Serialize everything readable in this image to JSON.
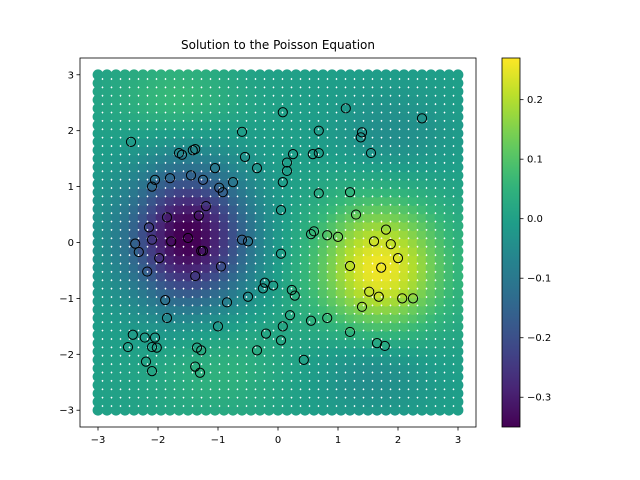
{
  "chart_data": {
    "type": "scatter",
    "title": "Solution to the Poisson Equation",
    "xlabel": "",
    "ylabel": "",
    "xlim": [
      -3.3,
      3.3
    ],
    "ylim": [
      -3.3,
      3.3
    ],
    "x_ticks": [
      -3,
      -2,
      -1,
      0,
      1,
      2,
      3
    ],
    "y_ticks": [
      -3,
      -2,
      -1,
      0,
      1,
      2,
      3
    ],
    "grid": false,
    "colorbar": {
      "colormap": "viridis",
      "range": [
        -0.35,
        0.27
      ],
      "ticks": [
        -0.3,
        -0.2,
        -0.1,
        0.0,
        0.1,
        0.2
      ]
    },
    "field": {
      "description_points": "regular grid of colored markers over [-3,3]x[-3,3], colored by solution value",
      "x_range": [
        -3,
        3
      ],
      "y_range": [
        -3,
        3
      ],
      "grid_n": 41,
      "sources": [
        {
          "x": -1.5,
          "y": 0.1,
          "amplitude": -0.36,
          "sigma_x": 0.7,
          "sigma_y": 0.85
        },
        {
          "x": 1.7,
          "y": -0.45,
          "amplitude": 0.26,
          "sigma_x": 0.75,
          "sigma_y": 0.85
        },
        {
          "x": -1.7,
          "y": 2.6,
          "amplitude": 0.07,
          "sigma_x": 0.7,
          "sigma_y": 0.45
        },
        {
          "x": 1.9,
          "y": 1.9,
          "amplitude": -0.05,
          "sigma_x": 0.7,
          "sigma_y": 0.6
        },
        {
          "x": -1.0,
          "y": -2.2,
          "amplitude": 0.05,
          "sigma_x": 0.8,
          "sigma_y": 0.7
        },
        {
          "x": 1.6,
          "y": -2.2,
          "amplitude": -0.07,
          "sigma_x": 0.7,
          "sigma_y": 0.55
        }
      ]
    },
    "observations": {
      "marker": "open-circle",
      "edge_color": "#000000",
      "points": [
        [
          -2.45,
          1.8
        ],
        [
          0.08,
          2.33
        ],
        [
          1.13,
          2.4
        ],
        [
          2.4,
          2.22
        ],
        [
          -0.6,
          1.98
        ],
        [
          0.68,
          2.0
        ],
        [
          1.4,
          1.97
        ],
        [
          1.38,
          1.88
        ],
        [
          -1.38,
          1.67
        ],
        [
          -1.42,
          1.65
        ],
        [
          -1.65,
          1.6
        ],
        [
          -1.6,
          1.57
        ],
        [
          -0.55,
          1.53
        ],
        [
          0.25,
          1.58
        ],
        [
          0.58,
          1.58
        ],
        [
          0.68,
          1.6
        ],
        [
          1.55,
          1.6
        ],
        [
          0.15,
          1.43
        ],
        [
          -1.05,
          1.33
        ],
        [
          -0.35,
          1.33
        ],
        [
          0.15,
          1.28
        ],
        [
          -2.05,
          1.12
        ],
        [
          -1.8,
          1.15
        ],
        [
          -1.45,
          1.2
        ],
        [
          -1.25,
          1.12
        ],
        [
          -0.75,
          1.08
        ],
        [
          0.08,
          1.08
        ],
        [
          -2.1,
          1.0
        ],
        [
          -0.98,
          0.98
        ],
        [
          -0.92,
          0.9
        ],
        [
          0.68,
          0.88
        ],
        [
          1.2,
          0.9
        ],
        [
          -1.2,
          0.65
        ],
        [
          -2.15,
          0.27
        ],
        [
          -1.85,
          0.45
        ],
        [
          -1.32,
          0.48
        ],
        [
          0.05,
          0.58
        ],
        [
          1.3,
          0.5
        ],
        [
          1.8,
          0.23
        ],
        [
          -2.38,
          -0.02
        ],
        [
          -2.1,
          0.05
        ],
        [
          -1.78,
          0.02
        ],
        [
          -1.5,
          0.08
        ],
        [
          -1.25,
          -0.15
        ],
        [
          -1.28,
          -0.15
        ],
        [
          -0.6,
          0.05
        ],
        [
          -0.5,
          0.02
        ],
        [
          0.55,
          0.15
        ],
        [
          0.6,
          0.2
        ],
        [
          0.82,
          0.13
        ],
        [
          1.0,
          0.1
        ],
        [
          1.6,
          0.02
        ],
        [
          1.88,
          -0.03
        ],
        [
          -2.32,
          -0.17
        ],
        [
          0.05,
          -0.2
        ],
        [
          -1.98,
          -0.28
        ],
        [
          2.0,
          -0.28
        ],
        [
          -0.95,
          -0.43
        ],
        [
          1.2,
          -0.42
        ],
        [
          1.72,
          -0.45
        ],
        [
          -2.18,
          -0.52
        ],
        [
          -1.38,
          -0.6
        ],
        [
          -0.22,
          -0.72
        ],
        [
          -0.25,
          -0.82
        ],
        [
          -0.08,
          -0.77
        ],
        [
          0.23,
          -0.85
        ],
        [
          1.52,
          -0.88
        ],
        [
          0.28,
          -0.95
        ],
        [
          -0.5,
          -0.97
        ],
        [
          1.68,
          -0.97
        ],
        [
          2.07,
          -1.0
        ],
        [
          2.25,
          -1.0
        ],
        [
          -1.88,
          -1.03
        ],
        [
          -0.85,
          -1.07
        ],
        [
          1.4,
          -1.15
        ],
        [
          0.2,
          -1.3
        ],
        [
          -1.85,
          -1.35
        ],
        [
          0.55,
          -1.4
        ],
        [
          0.82,
          -1.35
        ],
        [
          -1.0,
          -1.5
        ],
        [
          0.08,
          -1.5
        ],
        [
          -0.2,
          -1.63
        ],
        [
          1.2,
          -1.6
        ],
        [
          -2.42,
          -1.65
        ],
        [
          -2.22,
          -1.7
        ],
        [
          -2.05,
          -1.7
        ],
        [
          0.05,
          -1.75
        ],
        [
          1.65,
          -1.8
        ],
        [
          1.78,
          -1.85
        ],
        [
          -2.5,
          -1.87
        ],
        [
          -2.1,
          -1.87
        ],
        [
          -2.02,
          -1.88
        ],
        [
          -1.35,
          -1.88
        ],
        [
          -1.28,
          -1.93
        ],
        [
          -0.35,
          -1.93
        ],
        [
          -2.2,
          -2.13
        ],
        [
          0.43,
          -2.1
        ],
        [
          -1.38,
          -2.22
        ],
        [
          -2.1,
          -2.3
        ],
        [
          -1.3,
          -2.33
        ]
      ]
    }
  }
}
